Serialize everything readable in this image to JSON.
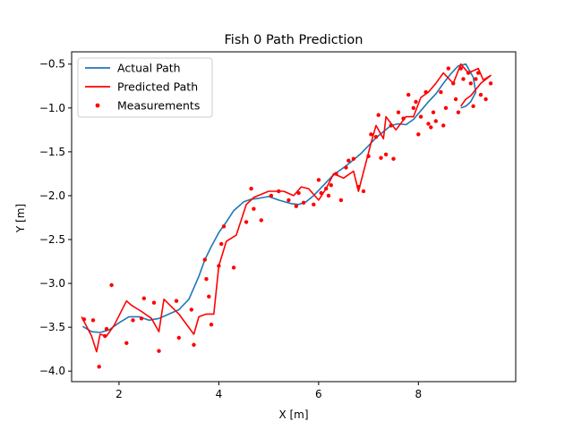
{
  "chart_data": {
    "type": "line",
    "title": "Fish 0 Path Prediction",
    "xlabel": "X [m]",
    "ylabel": "Y [m]",
    "xlim": [
      1.05,
      9.95
    ],
    "ylim": [
      -4.12,
      -0.36
    ],
    "x_ticks": [
      2,
      4,
      6,
      8
    ],
    "y_ticks": [
      -4.0,
      -3.5,
      -3.0,
      -2.5,
      -2.0,
      -1.5,
      -1.0,
      -0.5
    ],
    "grid": false,
    "legend_position": "top-left",
    "colors": {
      "actual": "#1f77b4",
      "predicted": "#ff0000",
      "measurements": "#ff0000"
    },
    "series": [
      {
        "name": "Actual Path",
        "style": "line",
        "x": [
          1.27,
          1.45,
          1.62,
          1.8,
          2.0,
          2.2,
          2.4,
          2.6,
          2.8,
          3.0,
          3.2,
          3.4,
          3.6,
          3.72,
          3.85,
          4.0,
          4.15,
          4.3,
          4.5,
          4.65,
          4.8,
          5.0,
          5.2,
          5.45,
          5.6,
          5.75,
          5.9,
          6.1,
          6.25,
          6.4,
          6.55,
          6.7,
          6.85,
          7.0,
          7.15,
          7.3,
          7.45,
          7.6,
          7.75,
          7.9,
          8.05,
          8.2,
          8.35,
          8.5,
          8.65,
          8.8,
          8.95,
          9.1,
          9.15,
          9.05,
          8.95,
          8.85
        ],
        "y": [
          -3.49,
          -3.55,
          -3.56,
          -3.53,
          -3.45,
          -3.38,
          -3.38,
          -3.42,
          -3.4,
          -3.35,
          -3.3,
          -3.18,
          -2.92,
          -2.73,
          -2.58,
          -2.42,
          -2.3,
          -2.17,
          -2.07,
          -2.04,
          -2.03,
          -2.01,
          -2.05,
          -2.09,
          -2.1,
          -2.07,
          -2.0,
          -1.88,
          -1.79,
          -1.72,
          -1.66,
          -1.59,
          -1.52,
          -1.43,
          -1.34,
          -1.27,
          -1.2,
          -1.18,
          -1.19,
          -1.13,
          -1.03,
          -0.93,
          -0.84,
          -0.72,
          -0.61,
          -0.52,
          -0.5,
          -0.65,
          -0.82,
          -0.93,
          -0.98,
          -1.0
        ]
      },
      {
        "name": "Predicted Path",
        "style": "line",
        "x": [
          1.25,
          1.45,
          1.55,
          1.62,
          1.75,
          1.9,
          2.15,
          2.25,
          2.45,
          2.65,
          2.8,
          2.9,
          3.2,
          3.5,
          3.6,
          3.75,
          3.9,
          4.0,
          4.15,
          4.35,
          4.55,
          4.7,
          5.0,
          5.3,
          5.5,
          5.65,
          5.8,
          6.0,
          6.15,
          6.3,
          6.5,
          6.7,
          6.8,
          6.95,
          7.05,
          7.15,
          7.3,
          7.35,
          7.55,
          7.75,
          7.9,
          8.05,
          8.2,
          8.35,
          8.5,
          8.7,
          8.85,
          9.0,
          9.2,
          9.3,
          9.45,
          9.25,
          9.05,
          8.95,
          8.85
        ],
        "y": [
          -3.38,
          -3.6,
          -3.78,
          -3.58,
          -3.6,
          -3.48,
          -3.2,
          -3.25,
          -3.32,
          -3.4,
          -3.55,
          -3.18,
          -3.35,
          -3.58,
          -3.38,
          -3.35,
          -3.35,
          -2.8,
          -2.52,
          -2.45,
          -2.1,
          -2.02,
          -1.95,
          -1.95,
          -2.0,
          -1.9,
          -1.92,
          -2.05,
          -1.92,
          -1.75,
          -1.8,
          -1.72,
          -1.95,
          -1.62,
          -1.4,
          -1.2,
          -1.35,
          -1.1,
          -1.25,
          -1.1,
          -1.1,
          -0.88,
          -0.82,
          -0.72,
          -0.6,
          -0.72,
          -0.5,
          -0.6,
          -0.55,
          -0.68,
          -0.63,
          -0.72,
          -0.86,
          -0.9,
          -0.98
        ]
      },
      {
        "name": "Measurements",
        "style": "scatter",
        "x": [
          1.3,
          1.48,
          1.6,
          1.72,
          1.75,
          1.85,
          2.15,
          2.28,
          2.45,
          2.5,
          2.7,
          2.8,
          3.15,
          3.2,
          3.45,
          3.5,
          3.72,
          3.75,
          3.8,
          3.85,
          4.0,
          4.05,
          4.1,
          4.3,
          4.55,
          4.65,
          4.7,
          4.85,
          5.05,
          5.2,
          5.4,
          5.55,
          5.6,
          5.7,
          5.9,
          6.0,
          6.05,
          6.15,
          6.2,
          6.25,
          6.35,
          6.45,
          6.55,
          6.6,
          6.7,
          6.8,
          6.9,
          7.0,
          7.05,
          7.15,
          7.2,
          7.25,
          7.35,
          7.45,
          7.5,
          7.6,
          7.7,
          7.8,
          7.9,
          7.95,
          8.0,
          8.05,
          8.15,
          8.2,
          8.25,
          8.3,
          8.35,
          8.45,
          8.5,
          8.55,
          8.6,
          8.7,
          8.75,
          8.8,
          8.85,
          8.9,
          9.0,
          9.05,
          9.1,
          9.15,
          9.2,
          9.25,
          9.35,
          9.45
        ],
        "y": [
          -3.41,
          -3.42,
          -3.95,
          -3.6,
          -3.52,
          -3.02,
          -3.68,
          -3.42,
          -3.4,
          -3.17,
          -3.22,
          -3.77,
          -3.2,
          -3.62,
          -3.3,
          -3.7,
          -2.73,
          -2.95,
          -3.15,
          -3.47,
          -2.8,
          -2.55,
          -2.35,
          -2.82,
          -2.3,
          -1.92,
          -2.15,
          -2.28,
          -2.0,
          -1.95,
          -2.05,
          -2.12,
          -1.97,
          -2.08,
          -2.1,
          -1.82,
          -1.97,
          -1.92,
          -2.0,
          -1.88,
          -1.75,
          -2.05,
          -1.68,
          -1.6,
          -1.58,
          -1.9,
          -1.95,
          -1.55,
          -1.3,
          -1.33,
          -1.08,
          -1.57,
          -1.53,
          -1.2,
          -1.58,
          -1.05,
          -1.12,
          -0.85,
          -1.0,
          -0.93,
          -1.3,
          -1.1,
          -0.82,
          -1.18,
          -1.22,
          -1.05,
          -1.15,
          -0.82,
          -1.2,
          -1.0,
          -0.55,
          -0.72,
          -0.9,
          -1.05,
          -0.55,
          -0.67,
          -0.6,
          -0.72,
          -0.98,
          -0.67,
          -0.6,
          -0.85,
          -0.9,
          -0.72
        ]
      }
    ]
  }
}
